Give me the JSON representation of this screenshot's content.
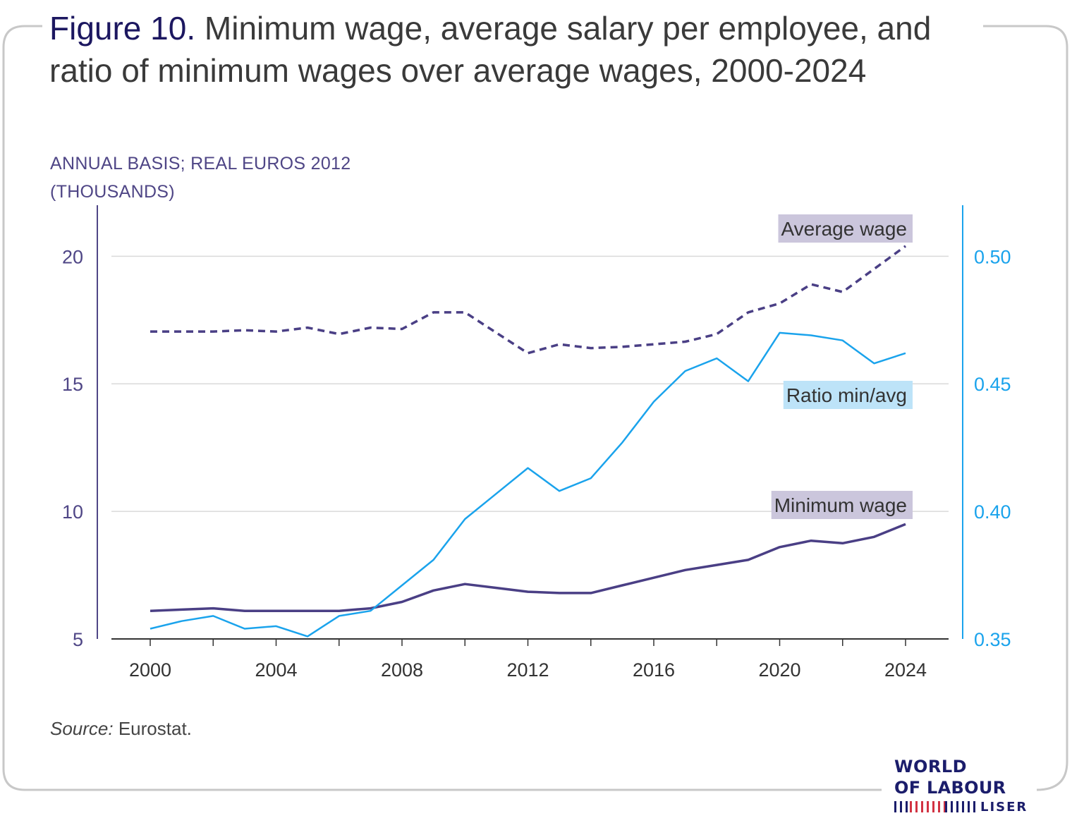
{
  "figure_label": "Figure 10.",
  "title_text": "Minimum wage, average salary per employee, and ratio of minimum wages over average wages, 2000-2024",
  "y_unit_line1": "ANNUAL BASIS; REAL EUROS 2012",
  "y_unit_line2": "(THOUSANDS)",
  "source_label": "Source:",
  "source_text": "Eurostat.",
  "logo": {
    "line1": "WORLD",
    "line2": "OF LABOUR",
    "line3": "LISER"
  },
  "colors": {
    "title_accent": "#1c1760",
    "average_wage": "#4a3f85",
    "minimum_wage": "#4a3f85",
    "ratio": "#1aa3ec",
    "avg_label_bg": "#cbc6dc",
    "ratio_label_bg": "#bde3f8"
  },
  "chart_data": {
    "type": "line",
    "title": "Minimum wage, average salary per employee, and ratio of minimum wages over average wages, 2000-2024",
    "x": [
      2000,
      2001,
      2002,
      2003,
      2004,
      2005,
      2006,
      2007,
      2008,
      2009,
      2010,
      2011,
      2012,
      2013,
      2014,
      2015,
      2016,
      2017,
      2018,
      2019,
      2020,
      2021,
      2022,
      2023,
      2024
    ],
    "x_ticks": [
      "2000",
      "2004",
      "2008",
      "2012",
      "2016",
      "2020",
      "2024"
    ],
    "y_left": {
      "ylim": [
        5,
        22
      ],
      "ticks": [
        "5",
        "10",
        "15",
        "20"
      ]
    },
    "y_right": {
      "ylim": [
        0.35,
        0.52
      ],
      "ticks": [
        "0.35",
        "0.40",
        "0.45",
        "0.50"
      ]
    },
    "series": [
      {
        "name": "Average wage",
        "axis": "left",
        "style": "dashed",
        "values": [
          17.05,
          17.05,
          17.05,
          17.1,
          17.05,
          17.2,
          16.95,
          17.2,
          17.15,
          17.8,
          17.8,
          17.0,
          16.2,
          16.55,
          16.4,
          16.45,
          16.55,
          16.65,
          16.95,
          17.8,
          18.15,
          18.9,
          18.6,
          19.5,
          20.4
        ]
      },
      {
        "name": "Minimum wage",
        "axis": "left",
        "style": "solid",
        "values": [
          6.1,
          6.15,
          6.2,
          6.1,
          6.1,
          6.1,
          6.1,
          6.2,
          6.45,
          6.9,
          7.15,
          7.0,
          6.85,
          6.8,
          6.8,
          7.1,
          7.4,
          7.7,
          7.9,
          8.1,
          8.6,
          8.85,
          8.75,
          9.0,
          9.5
        ]
      },
      {
        "name": "Ratio min/avg",
        "axis": "right",
        "style": "solid",
        "values": [
          0.354,
          0.357,
          0.359,
          0.354,
          0.355,
          0.351,
          0.359,
          0.361,
          0.371,
          0.381,
          0.397,
          0.407,
          0.417,
          0.408,
          0.413,
          0.427,
          0.443,
          0.455,
          0.46,
          0.451,
          0.47,
          0.469,
          0.467,
          0.458,
          0.462
        ]
      }
    ],
    "legend": "inline-labels",
    "grid": "horizontal"
  }
}
